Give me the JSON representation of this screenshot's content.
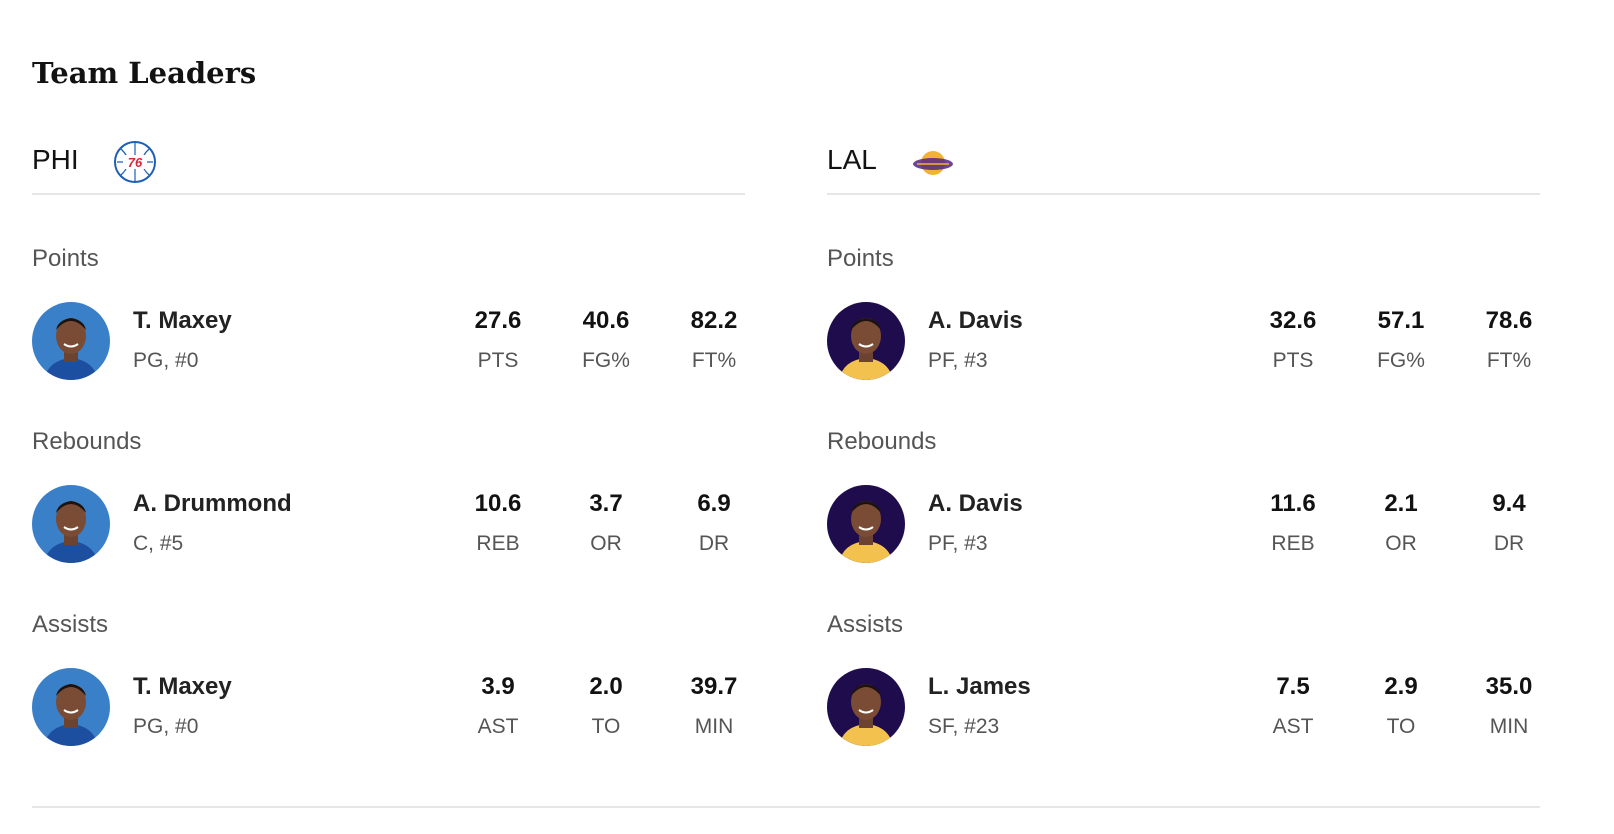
{
  "title": "Team Leaders",
  "teams": [
    {
      "abbr": "PHI",
      "leaders": [
        {
          "category": "Points",
          "player": "T. Maxey",
          "position": "PG, #0",
          "stats": [
            {
              "value": "27.6",
              "label": "PTS"
            },
            {
              "value": "40.6",
              "label": "FG%"
            },
            {
              "value": "82.2",
              "label": "FT%"
            }
          ]
        },
        {
          "category": "Rebounds",
          "player": "A. Drummond",
          "position": "C, #5",
          "stats": [
            {
              "value": "10.6",
              "label": "REB"
            },
            {
              "value": "3.7",
              "label": "OR"
            },
            {
              "value": "6.9",
              "label": "DR"
            }
          ]
        },
        {
          "category": "Assists",
          "player": "T. Maxey",
          "position": "PG, #0",
          "stats": [
            {
              "value": "3.9",
              "label": "AST"
            },
            {
              "value": "2.0",
              "label": "TO"
            },
            {
              "value": "39.7",
              "label": "MIN"
            }
          ]
        }
      ]
    },
    {
      "abbr": "LAL",
      "leaders": [
        {
          "category": "Points",
          "player": "A. Davis",
          "position": "PF, #3",
          "stats": [
            {
              "value": "32.6",
              "label": "PTS"
            },
            {
              "value": "57.1",
              "label": "FG%"
            },
            {
              "value": "78.6",
              "label": "FT%"
            }
          ]
        },
        {
          "category": "Rebounds",
          "player": "A. Davis",
          "position": "PF, #3",
          "stats": [
            {
              "value": "11.6",
              "label": "REB"
            },
            {
              "value": "2.1",
              "label": "OR"
            },
            {
              "value": "9.4",
              "label": "DR"
            }
          ]
        },
        {
          "category": "Assists",
          "player": "L. James",
          "position": "SF, #23",
          "stats": [
            {
              "value": "7.5",
              "label": "AST"
            },
            {
              "value": "2.9",
              "label": "TO"
            },
            {
              "value": "35.0",
              "label": "MIN"
            }
          ]
        }
      ]
    }
  ]
}
